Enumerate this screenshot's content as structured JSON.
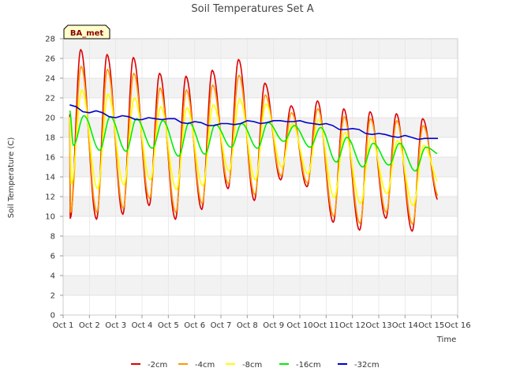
{
  "chart_data": {
    "type": "line",
    "title": "Soil Temperatures Set A",
    "xlabel": "Time",
    "ylabel": "Soil Temperature (C)",
    "badge": "BA_met",
    "x_ticks": [
      "Oct 1",
      "Oct 2",
      "Oct 3",
      "Oct 4",
      "Oct 5",
      "Oct 6",
      "Oct 7",
      "Oct 8",
      "Oct 9",
      "Oct 10",
      "Oct 11",
      "Oct 12",
      "Oct 13",
      "Oct 14",
      "Oct 15",
      "Oct 16"
    ],
    "y_ticks": [
      "0",
      "2",
      "4",
      "6",
      "8",
      "10",
      "12",
      "14",
      "16",
      "18",
      "20",
      "22",
      "24",
      "26",
      "28"
    ],
    "xlim_days": [
      1,
      16
    ],
    "ylim": [
      0,
      28
    ],
    "grid": true,
    "legend_position": "bottom-center",
    "series": [
      {
        "name": "-2cm",
        "color": "#dd0000",
        "daily_min": [
          9.8,
          9.7,
          10.2,
          11.1,
          9.7,
          10.7,
          12.8,
          11.6,
          13.7,
          13.0,
          9.4,
          8.6,
          9.8,
          8.5,
          11.6
        ],
        "daily_max": [
          26.9,
          26.4,
          26.1,
          24.5,
          24.2,
          24.8,
          25.9,
          23.5,
          21.2,
          21.7,
          20.9,
          20.6,
          20.4,
          19.9,
          19.9
        ]
      },
      {
        "name": "-4cm",
        "color": "#ff9900",
        "daily_min": [
          10.4,
          10.4,
          10.8,
          11.8,
          10.4,
          11.3,
          13.3,
          12.2,
          14.1,
          13.4,
          10.0,
          9.3,
          10.4,
          9.2,
          12.0
        ],
        "daily_max": [
          25.2,
          24.9,
          24.5,
          23.0,
          22.8,
          23.3,
          24.3,
          22.3,
          20.5,
          20.9,
          20.1,
          19.9,
          19.7,
          19.2,
          19.2
        ]
      },
      {
        "name": "-8cm",
        "color": "#ffff00",
        "daily_min": [
          13.3,
          12.8,
          13.2,
          13.7,
          12.7,
          13.1,
          14.6,
          13.7,
          15.0,
          14.3,
          11.9,
          11.3,
          12.3,
          11.1,
          13.4
        ],
        "daily_max": [
          22.8,
          22.4,
          22.0,
          21.1,
          21.0,
          21.3,
          21.9,
          21.4,
          19.4,
          19.8,
          18.5,
          18.0,
          17.7,
          17.2,
          17.2
        ]
      },
      {
        "name": "-16cm",
        "color": "#00ee00",
        "daily_min": [
          17.2,
          16.7,
          16.6,
          16.9,
          16.1,
          16.3,
          17.0,
          16.9,
          17.6,
          17.0,
          15.5,
          15.0,
          15.2,
          14.6,
          16.2
        ],
        "daily_max": [
          20.2,
          20.1,
          19.9,
          19.7,
          19.5,
          19.3,
          19.4,
          19.5,
          19.2,
          19.0,
          18.0,
          17.4,
          17.4,
          17.0,
          17.0
        ]
      },
      {
        "name": "-32cm",
        "color": "#0000cc",
        "x": [
          1.25,
          1.5,
          1.75,
          2.0,
          2.25,
          2.5,
          2.75,
          3.0,
          3.25,
          3.5,
          3.75,
          4.0,
          4.25,
          4.5,
          4.75,
          5.0,
          5.25,
          5.5,
          5.75,
          6.0,
          6.25,
          6.5,
          6.75,
          7.0,
          7.25,
          7.5,
          7.75,
          8.0,
          8.25,
          8.5,
          8.75,
          9.0,
          9.25,
          9.5,
          9.75,
          10.0,
          10.25,
          10.5,
          10.75,
          11.0,
          11.25,
          11.5,
          11.75,
          12.0,
          12.25,
          12.5,
          12.75,
          13.0,
          13.25,
          13.5,
          13.75,
          14.0,
          14.25,
          14.5,
          14.75,
          15.0,
          15.25
        ],
        "values": [
          21.3,
          21.1,
          20.6,
          20.5,
          20.7,
          20.5,
          20.1,
          20.0,
          20.2,
          20.1,
          19.8,
          19.8,
          20.0,
          19.9,
          19.8,
          19.9,
          19.9,
          19.5,
          19.4,
          19.6,
          19.5,
          19.2,
          19.2,
          19.4,
          19.4,
          19.3,
          19.4,
          19.7,
          19.6,
          19.4,
          19.5,
          19.7,
          19.7,
          19.6,
          19.6,
          19.7,
          19.5,
          19.4,
          19.3,
          19.4,
          19.2,
          18.8,
          18.8,
          18.9,
          18.8,
          18.4,
          18.3,
          18.4,
          18.3,
          18.1,
          18.0,
          18.2,
          18.0,
          17.8,
          17.9,
          17.9,
          17.9
        ]
      }
    ]
  }
}
